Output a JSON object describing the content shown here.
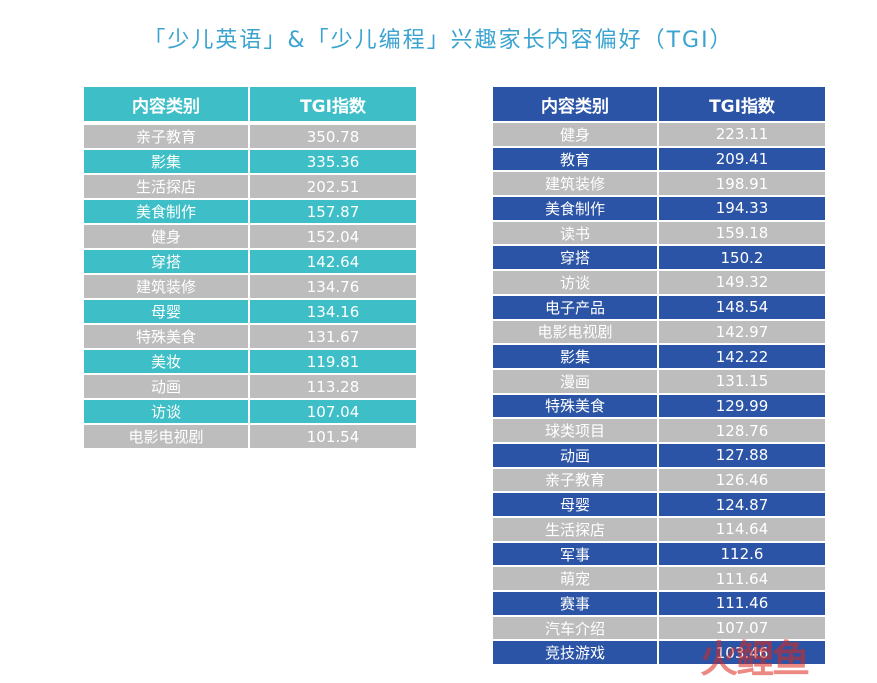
{
  "title": "「少儿英语」&「少儿编程」兴趣家长内容偏好（TGI）",
  "chart_data": [
    {
      "type": "table",
      "columns": [
        "内容类别",
        "TGI指数"
      ],
      "rows": [
        [
          "亲子教育",
          "350.78"
        ],
        [
          "影集",
          "335.36"
        ],
        [
          "生活探店",
          "202.51"
        ],
        [
          "美食制作",
          "157.87"
        ],
        [
          "健身",
          "152.04"
        ],
        [
          "穿搭",
          "142.64"
        ],
        [
          "建筑装修",
          "134.76"
        ],
        [
          "母婴",
          "134.16"
        ],
        [
          "特殊美食",
          "131.67"
        ],
        [
          "美妆",
          "119.81"
        ],
        [
          "动画",
          "113.28"
        ],
        [
          "访谈",
          "107.04"
        ],
        [
          "电影电视剧",
          "101.54"
        ]
      ],
      "colors": {
        "header": "#3ebfc7",
        "accent_row": "#3ebfc7",
        "gray_row": "#bdbdbd"
      }
    },
    {
      "type": "table",
      "columns": [
        "内容类别",
        "TGI指数"
      ],
      "rows": [
        [
          "健身",
          "223.11"
        ],
        [
          "教育",
          "209.41"
        ],
        [
          "建筑装修",
          "198.91"
        ],
        [
          "美食制作",
          "194.33"
        ],
        [
          "读书",
          "159.18"
        ],
        [
          "穿搭",
          "150.2"
        ],
        [
          "访谈",
          "149.32"
        ],
        [
          "电子产品",
          "148.54"
        ],
        [
          "电影电视剧",
          "142.97"
        ],
        [
          "影集",
          "142.22"
        ],
        [
          "漫画",
          "131.15"
        ],
        [
          "特殊美食",
          "129.99"
        ],
        [
          "球类项目",
          "128.76"
        ],
        [
          "动画",
          "127.88"
        ],
        [
          "亲子教育",
          "126.46"
        ],
        [
          "母婴",
          "124.87"
        ],
        [
          "生活探店",
          "114.64"
        ],
        [
          "军事",
          "112.6"
        ],
        [
          "萌宠",
          "111.64"
        ],
        [
          "赛事",
          "111.46"
        ],
        [
          "汽车介绍",
          "107.07"
        ],
        [
          "竞技游戏",
          "103.46"
        ]
      ],
      "colors": {
        "header": "#2b54a6",
        "accent_row": "#2b54a6",
        "gray_row": "#bdbdbd"
      }
    }
  ],
  "watermark": "火鲤鱼"
}
